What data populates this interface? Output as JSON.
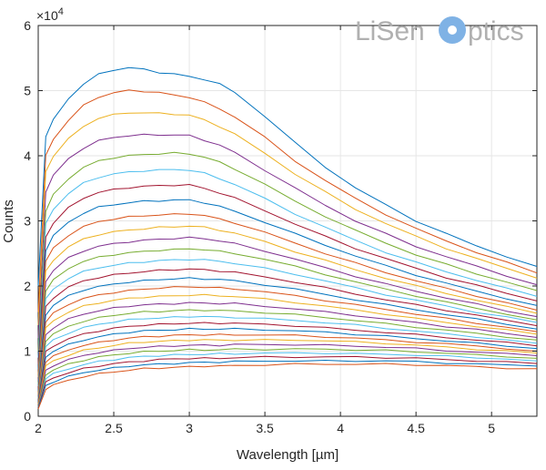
{
  "logo": {
    "text_left": "LiSen",
    "text_right": "ptics",
    "circle_color": "#7fb2e5"
  },
  "chart_data": {
    "type": "line",
    "xlabel": "Wavelength [µm]",
    "ylabel": "Counts",
    "exponent_label": "×10",
    "exponent_power": "4",
    "xlim": [
      2,
      5.3
    ],
    "ylim": [
      0,
      60000
    ],
    "xticks": [
      2,
      2.5,
      3,
      3.5,
      4,
      4.5,
      5
    ],
    "xtick_labels": [
      "2",
      "2.5",
      "3",
      "3.5",
      "4",
      "4.5",
      "5"
    ],
    "yticks": [
      0,
      10000,
      20000,
      30000,
      40000,
      50000,
      60000
    ],
    "ytick_labels": [
      "0",
      "1",
      "2",
      "3",
      "4",
      "5",
      "6"
    ],
    "grid": true,
    "x": [
      2.0,
      2.05,
      2.1,
      2.2,
      2.3,
      2.4,
      2.5,
      2.6,
      2.7,
      2.8,
      2.9,
      3.0,
      3.1,
      3.2,
      3.3,
      3.5,
      3.7,
      3.9,
      4.1,
      4.3,
      4.5,
      4.7,
      4.9,
      5.1,
      5.3
    ],
    "series_colors": [
      "#0072BD",
      "#D95319",
      "#EDB120",
      "#7E2F8E",
      "#77AC30",
      "#4DBEEE",
      "#A2142F"
    ],
    "series": [
      {
        "values": [
          20000,
          43000,
          45500,
          48800,
          51000,
          52500,
          53200,
          53500,
          53300,
          52800,
          52500,
          52200,
          51700,
          51000,
          49800,
          46000,
          42000,
          38300,
          35000,
          32500,
          30000,
          28000,
          26200,
          24500,
          23000
        ]
      },
      {
        "values": [
          16000,
          40000,
          42500,
          45500,
          47700,
          49000,
          49700,
          50000,
          49900,
          49700,
          49300,
          49000,
          48200,
          47200,
          46000,
          42800,
          39200,
          36200,
          33400,
          31000,
          28800,
          26900,
          25200,
          23600,
          22000
        ]
      },
      {
        "values": [
          14000,
          37500,
          40000,
          42600,
          44500,
          45800,
          46300,
          46600,
          46600,
          46500,
          46400,
          46200,
          45500,
          44500,
          43300,
          40400,
          37200,
          34400,
          31800,
          29600,
          27600,
          25800,
          24200,
          22700,
          21200
        ]
      },
      {
        "values": [
          12000,
          34500,
          37000,
          39500,
          41200,
          42300,
          42800,
          43100,
          43200,
          43200,
          43200,
          43100,
          42400,
          41600,
          40500,
          37800,
          35000,
          32400,
          30000,
          28000,
          26100,
          24500,
          23000,
          21600,
          20200
        ]
      },
      {
        "values": [
          10000,
          31500,
          34000,
          36500,
          38200,
          39200,
          39700,
          40000,
          40200,
          40300,
          40400,
          40300,
          39800,
          39000,
          38000,
          35600,
          33000,
          30700,
          28500,
          26600,
          24800,
          23300,
          21900,
          20600,
          19300
        ]
      },
      {
        "values": [
          9000,
          29500,
          31800,
          34200,
          35800,
          36700,
          37200,
          37500,
          37700,
          37800,
          37900,
          37800,
          37300,
          36500,
          35600,
          33400,
          31100,
          29000,
          27000,
          25200,
          23600,
          22200,
          20900,
          19600,
          18400
        ]
      },
      {
        "values": [
          8000,
          27500,
          29700,
          32000,
          33500,
          34400,
          34800,
          35100,
          35300,
          35400,
          35500,
          35500,
          35000,
          34300,
          33500,
          31600,
          29500,
          27600,
          25800,
          24200,
          22700,
          21300,
          20100,
          18900,
          17700
        ]
      },
      {
        "values": [
          7200,
          25500,
          27700,
          29800,
          31200,
          32100,
          32500,
          32800,
          33000,
          33100,
          33200,
          33200,
          32800,
          32200,
          31500,
          29800,
          28000,
          26300,
          24600,
          23100,
          21700,
          20400,
          19200,
          18100,
          17000
        ]
      },
      {
        "values": [
          6500,
          23800,
          25800,
          27800,
          29100,
          29900,
          30300,
          30600,
          30800,
          30900,
          31000,
          31100,
          30800,
          30300,
          29700,
          28200,
          26600,
          25000,
          23500,
          22100,
          20800,
          19600,
          18500,
          17400,
          16300
        ]
      },
      {
        "values": [
          6000,
          22200,
          24000,
          26000,
          27200,
          27900,
          28300,
          28600,
          28800,
          29000,
          29100,
          29200,
          29000,
          28600,
          28100,
          26800,
          25300,
          23900,
          22500,
          21200,
          20000,
          18900,
          17800,
          16800,
          15800
        ]
      },
      {
        "values": [
          5500,
          20700,
          22400,
          24300,
          25400,
          26100,
          26500,
          26800,
          27000,
          27200,
          27300,
          27400,
          27300,
          26900,
          26500,
          25400,
          24100,
          22800,
          21500,
          20300,
          19200,
          18200,
          17200,
          16200,
          15300
        ]
      },
      {
        "values": [
          5000,
          19300,
          20900,
          22700,
          23800,
          24400,
          24800,
          25100,
          25300,
          25500,
          25600,
          25700,
          25600,
          25300,
          25000,
          24100,
          23000,
          21800,
          20600,
          19500,
          18500,
          17500,
          16600,
          15700,
          14800
        ]
      },
      {
        "values": [
          4600,
          18000,
          19500,
          21200,
          22200,
          22800,
          23200,
          23500,
          23700,
          23900,
          24000,
          24100,
          24000,
          23800,
          23500,
          22700,
          21800,
          20800,
          19700,
          18700,
          17800,
          16900,
          16000,
          15200,
          14400
        ]
      },
      {
        "values": [
          4200,
          16800,
          18200,
          19800,
          20800,
          21300,
          21700,
          22000,
          22200,
          22400,
          22500,
          22600,
          22500,
          22300,
          22100,
          21400,
          20600,
          19700,
          18800,
          17900,
          17100,
          16300,
          15500,
          14700,
          13900
        ]
      },
      {
        "values": [
          3900,
          15600,
          17000,
          18500,
          19400,
          19900,
          20300,
          20600,
          20800,
          21000,
          21100,
          21200,
          21100,
          21000,
          20800,
          20200,
          19500,
          18700,
          17900,
          17100,
          16400,
          15600,
          14900,
          14200,
          13400
        ]
      },
      {
        "values": [
          3600,
          14500,
          15800,
          17200,
          18100,
          18600,
          19000,
          19300,
          19500,
          19700,
          19800,
          19900,
          19800,
          19700,
          19600,
          19100,
          18500,
          17800,
          17100,
          16400,
          15700,
          15000,
          14300,
          13700,
          13000
        ]
      },
      {
        "values": [
          3300,
          13500,
          14700,
          16000,
          16900,
          17400,
          17800,
          18100,
          18300,
          18400,
          18500,
          18600,
          18600,
          18500,
          18400,
          18000,
          17500,
          16900,
          16300,
          15700,
          15000,
          14400,
          13800,
          13200,
          12600
        ]
      },
      {
        "values": [
          3000,
          12500,
          13600,
          14900,
          15700,
          16200,
          16600,
          16900,
          17100,
          17200,
          17300,
          17400,
          17400,
          17300,
          17300,
          16900,
          16500,
          16000,
          15500,
          14900,
          14400,
          13800,
          13300,
          12700,
          12100
        ]
      },
      {
        "values": [
          2800,
          11600,
          12600,
          13800,
          14600,
          15100,
          15500,
          15800,
          16000,
          16100,
          16200,
          16300,
          16300,
          16200,
          16200,
          15900,
          15600,
          15200,
          14700,
          14200,
          13700,
          13200,
          12700,
          12200,
          11700
        ]
      },
      {
        "values": [
          2600,
          10700,
          11700,
          12800,
          13600,
          14100,
          14500,
          14800,
          15000,
          15100,
          15200,
          15300,
          15300,
          15200,
          15200,
          15000,
          14700,
          14400,
          14000,
          13500,
          13100,
          12600,
          12200,
          11700,
          11200
        ]
      },
      {
        "values": [
          2400,
          9900,
          10800,
          11900,
          12600,
          13100,
          13500,
          13800,
          14000,
          14100,
          14200,
          14300,
          14300,
          14300,
          14300,
          14100,
          13900,
          13600,
          13200,
          12900,
          12500,
          12100,
          11700,
          11300,
          10800
        ]
      },
      {
        "values": [
          2200,
          9100,
          10000,
          11000,
          11700,
          12200,
          12600,
          12900,
          13100,
          13200,
          13300,
          13400,
          13400,
          13400,
          13400,
          13300,
          13100,
          12900,
          12600,
          12300,
          11900,
          11600,
          11200,
          10800,
          10400
        ]
      },
      {
        "values": [
          2000,
          8400,
          9200,
          10200,
          10900,
          11300,
          11700,
          12000,
          12200,
          12300,
          12400,
          12500,
          12500,
          12500,
          12500,
          12500,
          12400,
          12200,
          12000,
          11700,
          11400,
          11100,
          10800,
          10400,
          10000
        ]
      },
      {
        "values": [
          1800,
          7700,
          8500,
          9400,
          10100,
          10500,
          10900,
          11200,
          11400,
          11500,
          11600,
          11700,
          11700,
          11700,
          11700,
          11700,
          11700,
          11600,
          11400,
          11200,
          10900,
          10600,
          10300,
          10000,
          9700
        ]
      },
      {
        "values": [
          1600,
          7000,
          7800,
          8700,
          9300,
          9800,
          10100,
          10400,
          10600,
          10700,
          10800,
          10900,
          10900,
          10900,
          11000,
          11000,
          11000,
          10900,
          10800,
          10600,
          10400,
          10100,
          9800,
          9600,
          9300
        ]
      },
      {
        "values": [
          1500,
          6400,
          7100,
          8000,
          8600,
          9100,
          9400,
          9700,
          9900,
          10000,
          10100,
          10200,
          10200,
          10200,
          10300,
          10300,
          10300,
          10300,
          10200,
          10100,
          9900,
          9700,
          9400,
          9200,
          8900
        ]
      },
      {
        "values": [
          1400,
          5800,
          6500,
          7300,
          7900,
          8400,
          8700,
          9000,
          9200,
          9300,
          9400,
          9500,
          9500,
          9600,
          9600,
          9700,
          9700,
          9700,
          9600,
          9500,
          9400,
          9200,
          9000,
          8800,
          8500
        ]
      },
      {
        "values": [
          1300,
          5200,
          5900,
          6700,
          7300,
          7700,
          8100,
          8300,
          8500,
          8700,
          8800,
          8900,
          8900,
          8900,
          9000,
          9100,
          9100,
          9100,
          9100,
          9000,
          8900,
          8700,
          8500,
          8300,
          8100
        ]
      },
      {
        "values": [
          1200,
          4700,
          5300,
          6100,
          6700,
          7100,
          7400,
          7700,
          7900,
          8000,
          8100,
          8200,
          8300,
          8300,
          8400,
          8500,
          8500,
          8500,
          8500,
          8500,
          8400,
          8200,
          8000,
          7900,
          7700
        ]
      },
      {
        "values": [
          1100,
          4200,
          4800,
          5500,
          6100,
          6500,
          6800,
          7100,
          7300,
          7400,
          7500,
          7600,
          7700,
          7700,
          7800,
          7900,
          8000,
          8000,
          8000,
          8000,
          7900,
          7800,
          7600,
          7400,
          7300
        ]
      }
    ]
  }
}
